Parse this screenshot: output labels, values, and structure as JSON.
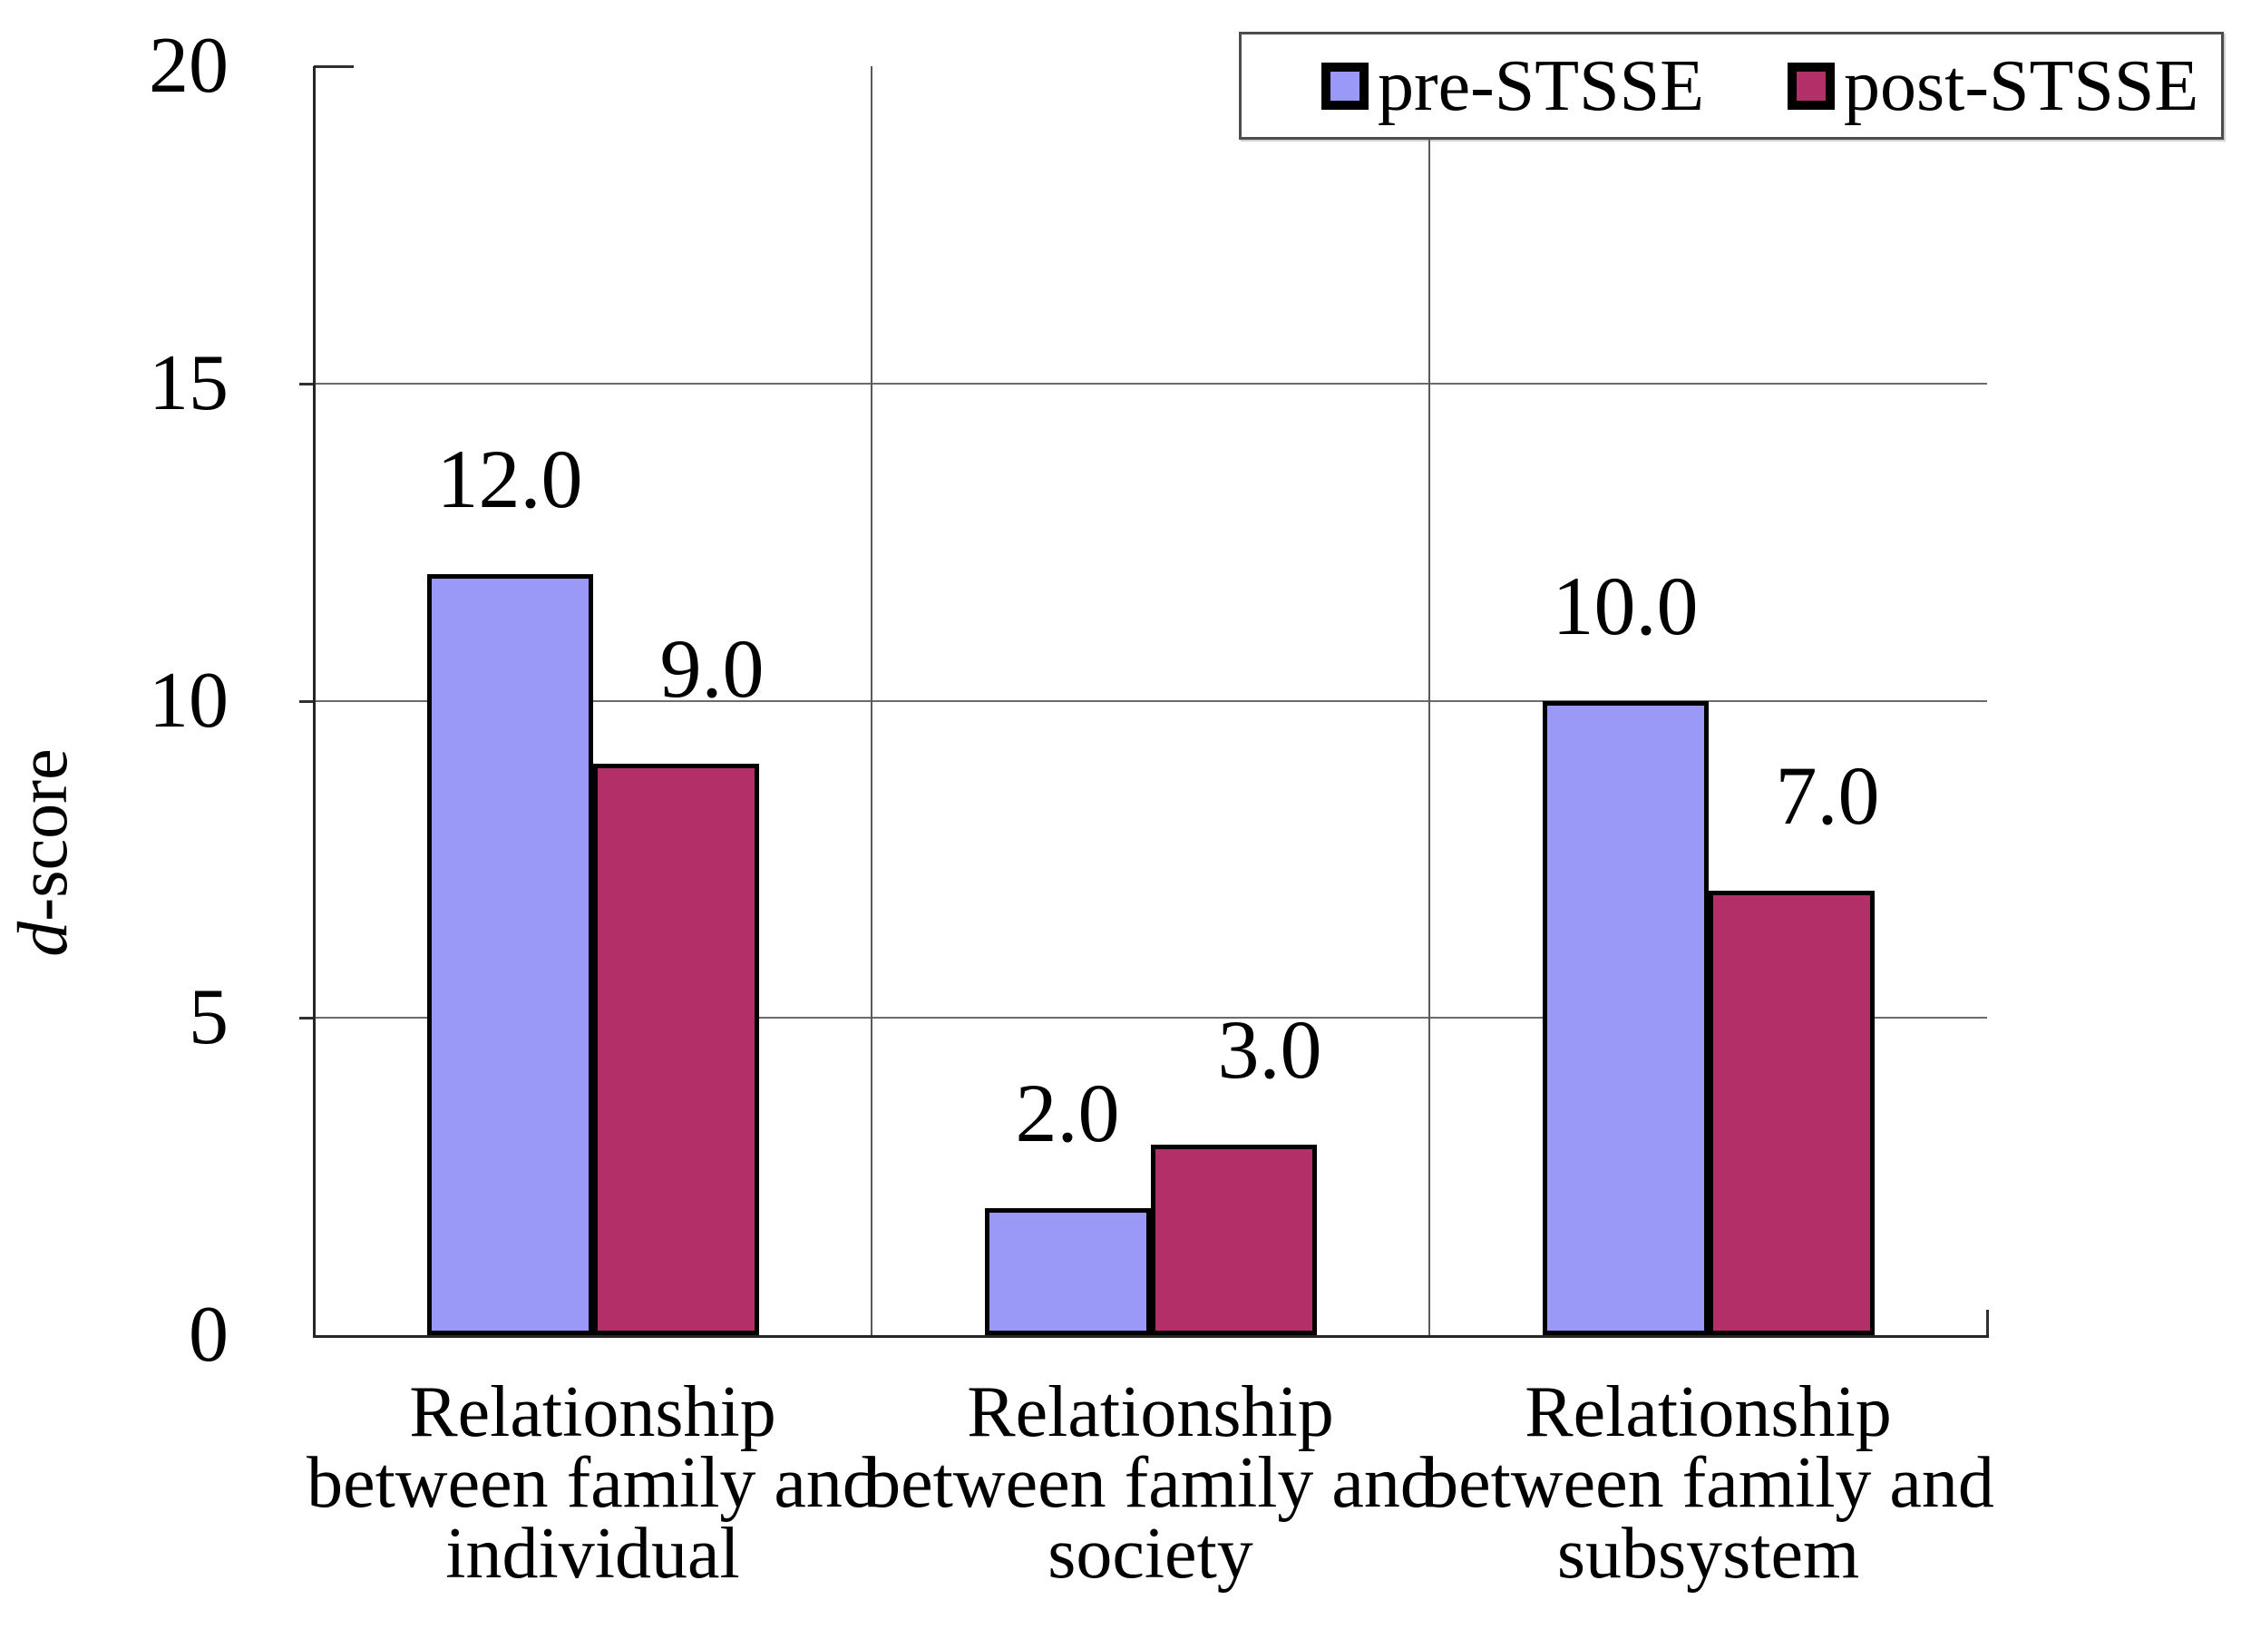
{
  "chart_data": {
    "type": "bar",
    "title": "",
    "ylabel": "d-score",
    "ylabel_italic": "d",
    "ylabel_rest": "-score",
    "categories": [
      "Relationship between family and individual",
      "Relationship between family and society",
      "Relationship between family and subsystem"
    ],
    "category_lines": [
      [
        "Relationship",
        "between family and",
        "individual"
      ],
      [
        "Relationship",
        "between family and",
        "society"
      ],
      [
        "Relationship",
        "between family and",
        "subsystem"
      ]
    ],
    "series": [
      {
        "name": "pre-STSSE",
        "color": "#9a99f8",
        "values": [
          12.0,
          2.0,
          10.0
        ]
      },
      {
        "name": "post-STSSE",
        "color": "#b23067",
        "values": [
          9.0,
          3.0,
          7.0
        ]
      }
    ],
    "value_labels": [
      "12.0",
      "9.0",
      "2.0",
      "3.0",
      "10.0",
      "7.0"
    ],
    "yticks": [
      0,
      5,
      10,
      15,
      20
    ],
    "ylim": [
      0,
      20
    ],
    "grid": true,
    "legend_position": "top-right",
    "colors": {
      "pre_fill": "#9a99f8",
      "post_fill": "#b23067",
      "bar_border": "#000000",
      "gridline": "#6b6b6b",
      "axis": "#262626",
      "legend_border": "#4d4d4d",
      "background": "#ffffff",
      "text": "#000000"
    }
  }
}
